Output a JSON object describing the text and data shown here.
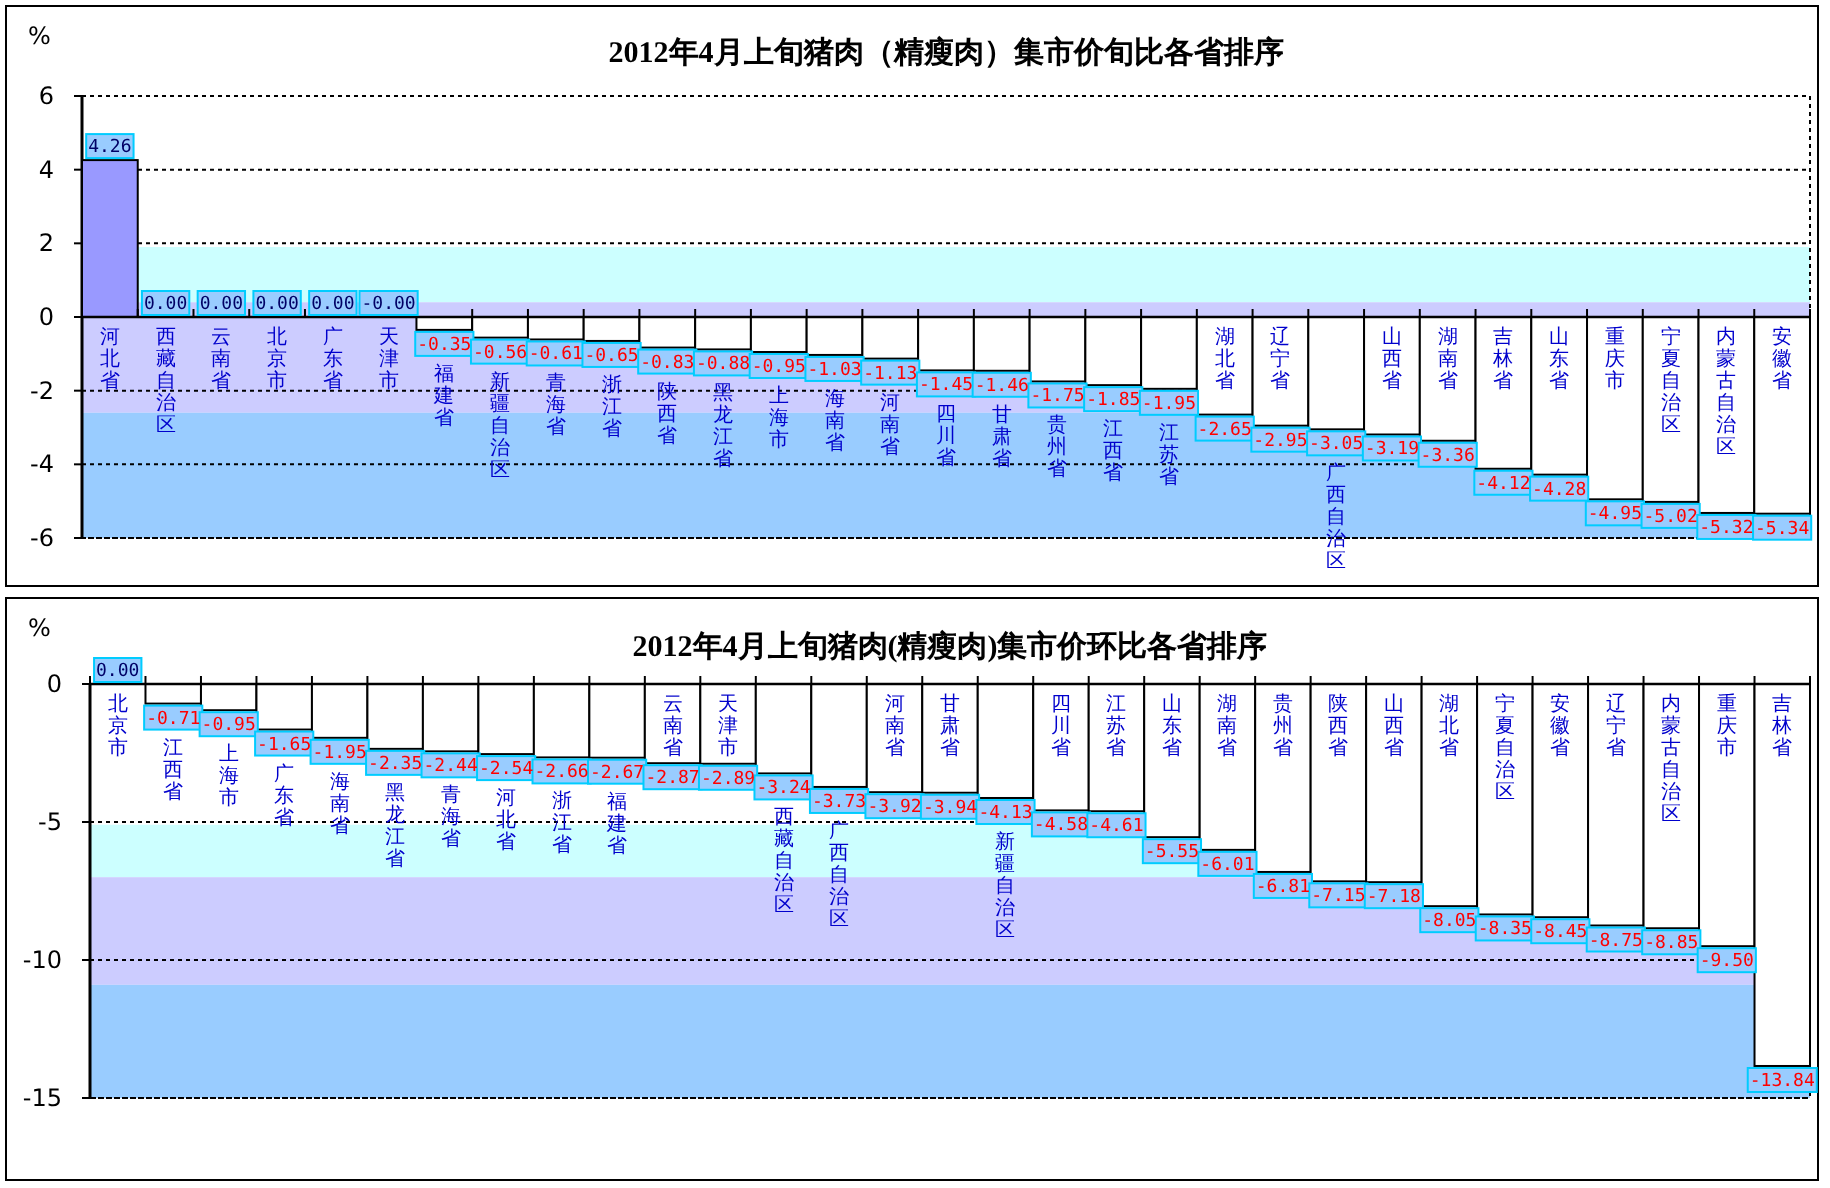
{
  "chart_data": [
    {
      "type": "bar",
      "title": "2012年4月上旬猪肉（精瘦肉）集市价旬比各省排序",
      "ylabel": "%",
      "categories": [
        "河北省",
        "西藏自治区",
        "云南省",
        "北京市",
        "广东省",
        "天津市",
        "福建省",
        "新疆自治区",
        "青海省",
        "浙江省",
        "陕西省",
        "黑龙江省",
        "上海市",
        "海南省",
        "河南省",
        "四川省",
        "甘肃省",
        "贵州省",
        "江西省",
        "江苏省",
        "湖北省",
        "辽宁省",
        "广西自治区",
        "山西省",
        "湖南省",
        "吉林省",
        "山东省",
        "重庆市",
        "宁夏自治区",
        "内蒙古自治区",
        "安徽省"
      ],
      "values": [
        4.26,
        0,
        0,
        0,
        0,
        0,
        -0.35,
        -0.56,
        -0.61,
        -0.65,
        -0.83,
        -0.88,
        -0.95,
        -1.03,
        -1.13,
        -1.45,
        -1.46,
        -1.75,
        -1.85,
        -1.95,
        -2.65,
        -2.95,
        -3.05,
        -3.19,
        -3.36,
        -4.12,
        -4.28,
        -4.95,
        -5.02,
        -5.32,
        -5.34
      ],
      "value_labels": [
        "4.26",
        "0.00",
        "0.00",
        "0.00",
        "0.00",
        "-0.00",
        "-0.35",
        "-0.56",
        "-0.61",
        "-0.65",
        "-0.83",
        "-0.88",
        "-0.95",
        "-1.03",
        "-1.13",
        "-1.45",
        "-1.46",
        "-1.75",
        "-1.85",
        "-1.95",
        "-2.65",
        "-2.95",
        "-3.05",
        "-3.19",
        "-3.36",
        "-4.12",
        "-4.28",
        "-4.95",
        "-5.02",
        "-5.32",
        "-5.34"
      ],
      "colors": [
        "#9999ff",
        "#ffffff",
        "#ffffff",
        "#ffffff",
        "#ffffff",
        "#ffffff",
        "#ffffff",
        "#ffffff",
        "#ffffff",
        "#ffffff",
        "#ffffff",
        "#ffffff",
        "#ffffff",
        "#ffffff",
        "#ffffff",
        "#ffffff",
        "#ffffff",
        "#ffffff",
        "#ffffff",
        "#ffffff",
        "#ffffff",
        "#ffffff",
        "#ffffff",
        "#ffffff",
        "#ffffff",
        "#ffffff",
        "#ffffff",
        "#ffffff",
        "#ffffff",
        "#ffffff",
        "#ffffff"
      ],
      "ylim": [
        -6,
        6
      ],
      "yticks": [
        -6,
        -4,
        -2,
        0,
        2,
        4,
        6
      ],
      "grid": "y",
      "bands": [
        {
          "axis": "y",
          "from": 0.4,
          "to": 1.9,
          "color": "#ccffff"
        },
        {
          "axis": "y",
          "from": -2.6,
          "to": 0.4,
          "color": "#ccccff"
        },
        {
          "axis": "y",
          "from": -6,
          "to": -2.6,
          "color": "#99ccff"
        }
      ]
    },
    {
      "type": "bar",
      "title": "2012年4月上旬猪肉(精瘦肉)集市价环比各省排序",
      "ylabel": "%",
      "categories": [
        "北京市",
        "江西省",
        "上海市",
        "广东省",
        "海南省",
        "黑龙江省",
        "青海省",
        "河北省",
        "浙江省",
        "福建省",
        "云南省",
        "天津市",
        "西藏自治区",
        "广西自治区",
        "河南省",
        "甘肃省",
        "新疆自治区",
        "四川省",
        "江苏省",
        "山东省",
        "湖南省",
        "贵州省",
        "陕西省",
        "山西省",
        "湖北省",
        "宁夏自治区",
        "安徽省",
        "辽宁省",
        "内蒙古自治区",
        "重庆市",
        "吉林省"
      ],
      "values": [
        0,
        -0.71,
        -0.95,
        -1.65,
        -1.95,
        -2.35,
        -2.44,
        -2.54,
        -2.66,
        -2.67,
        -2.87,
        -2.89,
        -3.24,
        -3.73,
        -3.92,
        -3.94,
        -4.13,
        -4.58,
        -4.61,
        -5.55,
        -6.01,
        -6.81,
        -7.15,
        -7.18,
        -8.05,
        -8.35,
        -8.45,
        -8.75,
        -8.85,
        -9.5,
        -13.84
      ],
      "value_labels": [
        "0.00",
        "-0.71",
        "-0.95",
        "-1.65",
        "-1.95",
        "-2.35",
        "-2.44",
        "-2.54",
        "-2.66",
        "-2.67",
        "-2.87",
        "-2.89",
        "-3.24",
        "-3.73",
        "-3.92",
        "-3.94",
        "-4.13",
        "-4.58",
        "-4.61",
        "-5.55",
        "-6.01",
        "-6.81",
        "-7.15",
        "-7.18",
        "-8.05",
        "-8.35",
        "-8.45",
        "-8.75",
        "-8.85",
        "-9.50",
        "-13.84"
      ],
      "colors": [
        "#ffffff",
        "#ffffff",
        "#ffffff",
        "#ffffff",
        "#ffffff",
        "#ffffff",
        "#ffffff",
        "#ffffff",
        "#ffffff",
        "#ffffff",
        "#ffffff",
        "#ffffff",
        "#ffffff",
        "#ffffff",
        "#ffffff",
        "#ffffff",
        "#ffffff",
        "#ffffff",
        "#ffffff",
        "#ffffff",
        "#ffffff",
        "#ffffff",
        "#ffffff",
        "#ffffff",
        "#ffffff",
        "#ffffff",
        "#ffffff",
        "#ffffff",
        "#ffffff",
        "#ffffff",
        "#ffffff"
      ],
      "ylim": [
        -15,
        0
      ],
      "yticks": [
        -15,
        -10,
        -5,
        0
      ],
      "grid": "y",
      "bands": [
        {
          "axis": "y",
          "from": -7,
          "to": -5.1,
          "color": "#ccffff"
        },
        {
          "axis": "y",
          "from": -10.9,
          "to": -7,
          "color": "#ccccff"
        },
        {
          "axis": "y",
          "from": -15,
          "to": -10.9,
          "color": "#99ccff"
        }
      ]
    }
  ]
}
